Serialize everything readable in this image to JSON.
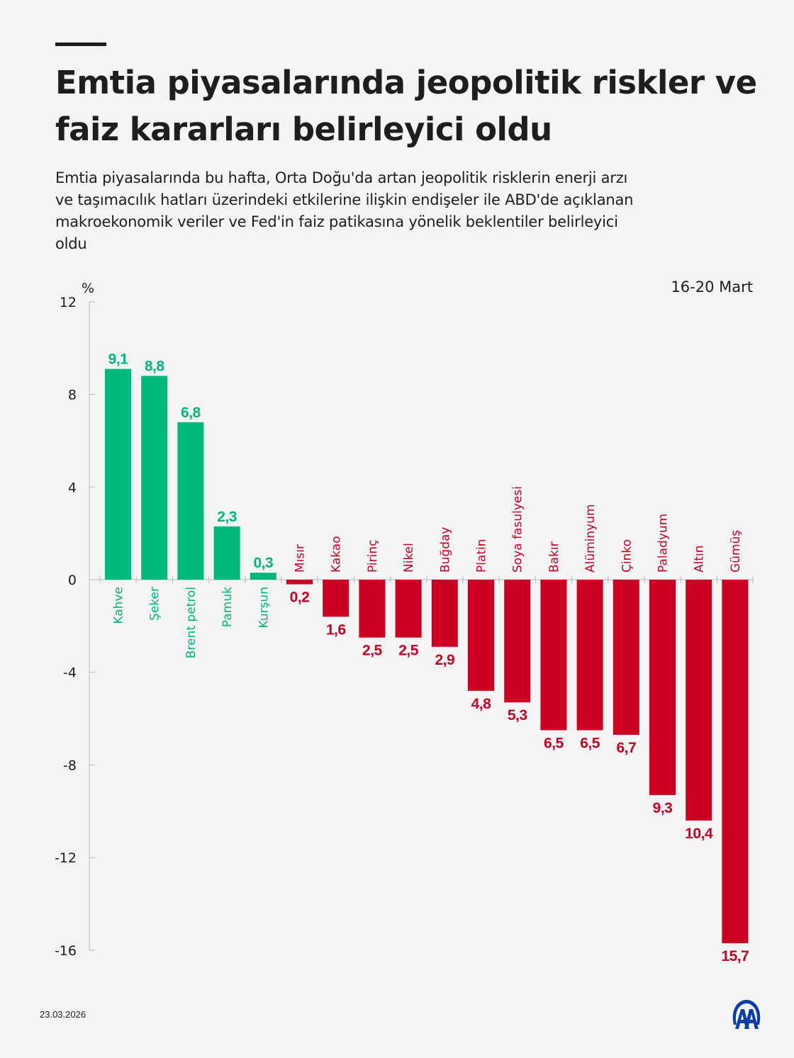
{
  "header": {
    "title": "Emtia piyasalarında jeopolitik riskler ve faiz kararları belirleyici oldu",
    "subtitle": "Emtia piyasalarında bu hafta, Orta Doğu'da artan jeopolitik risklerin enerji arzı ve taşımacılık hatları üzerindeki etkilerine ilişkin endişeler ile ABD'de açıklanan makroekonomik veriler ve Fed'in faiz patikasına yönelik beklentiler belirleyici oldu"
  },
  "footer": {
    "date": "23.03.2026",
    "logo": "AA"
  },
  "chart_data": {
    "type": "bar",
    "period": "16-20 Mart",
    "ylabel": "%",
    "ylim": [
      -16,
      12
    ],
    "yticks": [
      12,
      8,
      4,
      0,
      -4,
      -8,
      -12,
      -16
    ],
    "grid": false,
    "categories": [
      "Kahve",
      "Şeker",
      "Brent petrol",
      "Pamuk",
      "Kurşun",
      "Mısır",
      "Kakao",
      "Pirinç",
      "Nikel",
      "Buğday",
      "Platin",
      "Soya fasulyesi",
      "Bakır",
      "Alüminyum",
      "Çinko",
      "Paladyum",
      "Altın",
      "Gümüş"
    ],
    "values": [
      9.1,
      8.8,
      6.8,
      2.3,
      0.3,
      -0.2,
      -1.6,
      -2.5,
      -2.5,
      -2.9,
      -4.8,
      -5.3,
      -6.5,
      -6.5,
      -6.7,
      -9.3,
      -10.4,
      -15.7
    ],
    "colors": {
      "positive": "#00b87c",
      "negative": "#cc0023"
    }
  }
}
